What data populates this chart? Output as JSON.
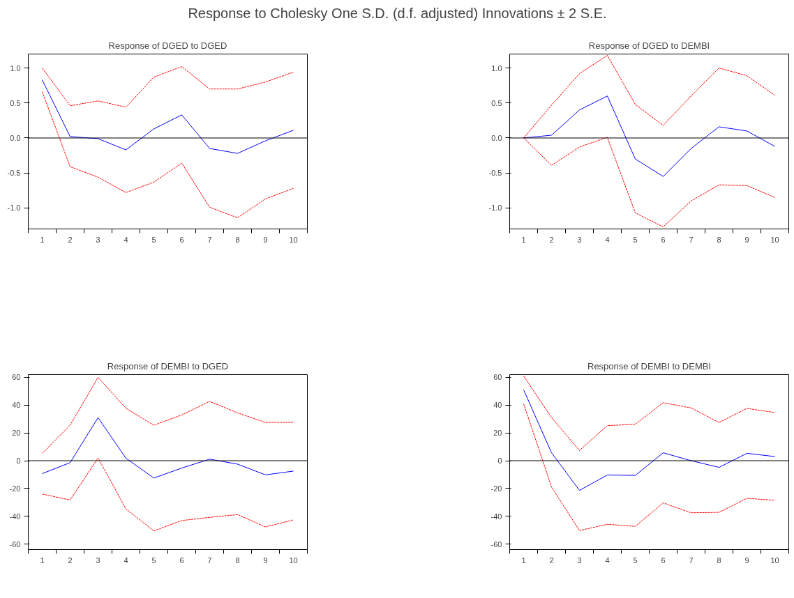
{
  "chart_data": [
    {
      "type": "other",
      "title": "Response to Cholesky One S.D. (d.f. adjusted) Innovations ± 2 S.E."
    },
    {
      "type": "line",
      "title": "Response of DGED to DGED",
      "categories": [
        "1",
        "2",
        "3",
        "4",
        "5",
        "6",
        "7",
        "8",
        "9",
        "10"
      ],
      "ylim": [
        -1.3,
        1.2
      ],
      "yticks": [
        {
          "value": -1.0,
          "label": "-1.0"
        },
        {
          "value": -0.5,
          "label": "-0.5"
        },
        {
          "value": 0,
          "label": "0.0"
        },
        {
          "value": 0.5,
          "label": "0.5"
        },
        {
          "value": 1.0,
          "label": "1.0"
        }
      ],
      "ref_lines": [
        {
          "axis": "y",
          "value": 0,
          "color": "#000000"
        }
      ],
      "series": [
        {
          "color": "#0000ff",
          "line_style": "solid",
          "values": [
            0.83,
            0.02,
            -0.01,
            -0.17,
            0.13,
            0.33,
            -0.15,
            -0.22,
            -0.04,
            0.11
          ]
        },
        {
          "color": "#ff0000",
          "line_style": "dashed",
          "values": [
            1.0,
            0.46,
            0.53,
            0.44,
            0.87,
            1.02,
            0.7,
            0.7,
            0.8,
            0.94
          ]
        },
        {
          "color": "#ff0000",
          "line_style": "dashed",
          "values": [
            0.66,
            -0.41,
            -0.56,
            -0.78,
            -0.63,
            -0.36,
            -0.99,
            -1.14,
            -0.87,
            -0.72
          ]
        }
      ]
    },
    {
      "type": "line",
      "title": "Response of DGED to DEMBI",
      "categories": [
        "1",
        "2",
        "3",
        "4",
        "5",
        "6",
        "7",
        "8",
        "9",
        "10"
      ],
      "ylim": [
        -1.3,
        1.2
      ],
      "yticks": [
        {
          "value": -1.0,
          "label": "-1.0"
        },
        {
          "value": -0.5,
          "label": "-0.5"
        },
        {
          "value": 0,
          "label": "0.0"
        },
        {
          "value": 0.5,
          "label": "0.5"
        },
        {
          "value": 1.0,
          "label": "1.0"
        }
      ],
      "ref_lines": [
        {
          "axis": "y",
          "value": 0,
          "color": "#000000"
        }
      ],
      "series": [
        {
          "color": "#0000ff",
          "line_style": "solid",
          "values": [
            0,
            0.04,
            0.4,
            0.6,
            -0.3,
            -0.55,
            -0.15,
            0.16,
            0.1,
            -0.12
          ]
        },
        {
          "color": "#ff0000",
          "line_style": "dashed",
          "values": [
            0,
            0.47,
            0.92,
            1.18,
            0.48,
            0.18,
            0.6,
            1.0,
            0.89,
            0.61
          ]
        },
        {
          "color": "#ff0000",
          "line_style": "dashed",
          "values": [
            0,
            -0.39,
            -0.13,
            0.01,
            -1.07,
            -1.27,
            -0.9,
            -0.67,
            -0.68,
            -0.85
          ]
        }
      ]
    },
    {
      "type": "line",
      "title": "Response of DEMBI to DGED",
      "categories": [
        "1",
        "2",
        "3",
        "4",
        "5",
        "6",
        "7",
        "8",
        "9",
        "10"
      ],
      "ylim": [
        -64,
        62
      ],
      "yticks": [
        -60,
        -40,
        -20,
        0,
        20,
        40,
        60
      ],
      "ref_lines": [
        {
          "axis": "y",
          "value": 0,
          "color": "#000000"
        }
      ],
      "series": [
        {
          "color": "#0000ff",
          "line_style": "solid",
          "values": [
            -9.3,
            -1.4,
            31,
            1.8,
            -12.5,
            -5.3,
            1.1,
            -2.5,
            -10.2,
            -7.5
          ]
        },
        {
          "color": "#ff0000",
          "line_style": "dashed",
          "values": [
            5.3,
            25.6,
            60,
            37.8,
            25.5,
            33,
            42.7,
            34.4,
            27.6,
            27.6
          ]
        },
        {
          "color": "#ff0000",
          "line_style": "dashed",
          "values": [
            -24,
            -28.3,
            2,
            -34.7,
            -50.6,
            -43.1,
            -40.8,
            -38.8,
            -47.7,
            -42.6
          ]
        }
      ]
    },
    {
      "type": "line",
      "title": "Response of DEMBI to DEMBI",
      "categories": [
        "1",
        "2",
        "3",
        "4",
        "5",
        "6",
        "7",
        "8",
        "9",
        "10"
      ],
      "ylim": [
        -64,
        62
      ],
      "yticks": [
        -60,
        -40,
        -20,
        0,
        20,
        40,
        60
      ],
      "ref_lines": [
        {
          "axis": "y",
          "value": 0,
          "color": "#000000"
        }
      ],
      "series": [
        {
          "color": "#0000ff",
          "line_style": "solid",
          "values": [
            51,
            5.7,
            -21.4,
            -10.3,
            -10.6,
            5.7,
            0,
            -4.8,
            5.3,
            3
          ]
        },
        {
          "color": "#ff0000",
          "line_style": "dashed",
          "values": [
            61,
            31,
            7.4,
            25.3,
            26.2,
            41.8,
            38,
            27.6,
            37.7,
            34.7
          ]
        },
        {
          "color": "#ff0000",
          "line_style": "dashed",
          "values": [
            41,
            -19,
            -50.3,
            -45.8,
            -47.3,
            -30.4,
            -37.5,
            -37.2,
            -27.1,
            -28.5
          ]
        }
      ]
    }
  ]
}
